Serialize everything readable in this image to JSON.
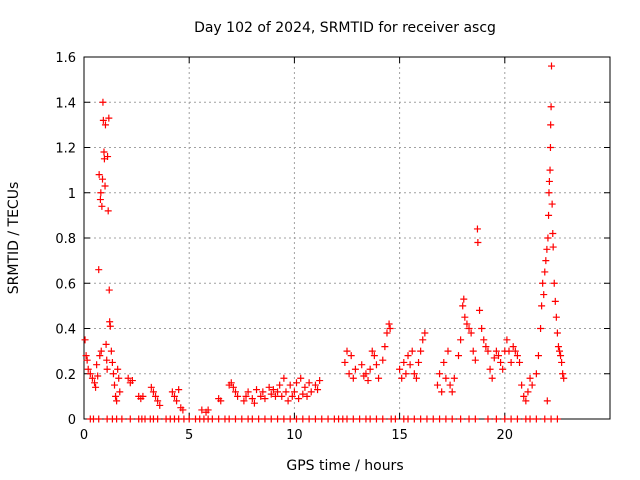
{
  "chart_data": {
    "type": "scatter",
    "title": "Day 102 of 2024, SRMTID for receiver ascg",
    "xlabel": "GPS time / hours",
    "ylabel": "SRMTID / TECUs",
    "xlim": [
      0,
      25
    ],
    "ylim": [
      0,
      1.6
    ],
    "xticks": [
      0,
      5,
      10,
      15,
      20
    ],
    "yticks": [
      0,
      0.2,
      0.4,
      0.6,
      0.8,
      1,
      1.2,
      1.4,
      1.6
    ],
    "xtick_labels": [
      "0",
      "5",
      "10",
      "15",
      "20"
    ],
    "ytick_labels": [
      "0",
      "0.2",
      "0.4",
      "0.6",
      "0.8",
      "1",
      "1.2",
      "1.4",
      "1.6"
    ],
    "grid": true,
    "marker": "+",
    "color": "#ff0000",
    "series": [
      {
        "name": "SRMTID",
        "points": [
          [
            0.05,
            0.35
          ],
          [
            0.1,
            0.28
          ],
          [
            0.15,
            0.26
          ],
          [
            0.2,
            0.22
          ],
          [
            0.3,
            0.2
          ],
          [
            0.4,
            0.18
          ],
          [
            0.5,
            0.16
          ],
          [
            0.55,
            0.14
          ],
          [
            0.6,
            0.24
          ],
          [
            0.65,
            0.19
          ],
          [
            0.7,
            0.66
          ],
          [
            0.72,
            1.08
          ],
          [
            0.75,
            0.28
          ],
          [
            0.78,
            0.97
          ],
          [
            0.8,
            1.0
          ],
          [
            0.82,
            0.3
          ],
          [
            0.85,
            0.94
          ],
          [
            0.88,
            1.06
          ],
          [
            0.9,
            1.4
          ],
          [
            0.92,
            1.32
          ],
          [
            0.95,
            1.18
          ],
          [
            0.97,
            1.15
          ],
          [
            1.0,
            1.03
          ],
          [
            1.02,
            1.3
          ],
          [
            1.05,
            0.33
          ],
          [
            1.08,
            0.26
          ],
          [
            1.1,
            0.22
          ],
          [
            1.12,
            1.16
          ],
          [
            1.15,
            0.92
          ],
          [
            1.18,
            1.33
          ],
          [
            1.2,
            0.57
          ],
          [
            1.22,
            0.43
          ],
          [
            1.25,
            0.41
          ],
          [
            1.3,
            0.3
          ],
          [
            1.35,
            0.25
          ],
          [
            1.4,
            0.2
          ],
          [
            1.45,
            0.15
          ],
          [
            1.5,
            0.1
          ],
          [
            1.55,
            0.08
          ],
          [
            1.6,
            0.22
          ],
          [
            1.65,
            0.18
          ],
          [
            1.7,
            0.12
          ],
          [
            2.1,
            0.18
          ],
          [
            2.2,
            0.16
          ],
          [
            2.3,
            0.17
          ],
          [
            2.6,
            0.1
          ],
          [
            2.7,
            0.09
          ],
          [
            2.8,
            0.1
          ],
          [
            3.2,
            0.14
          ],
          [
            3.3,
            0.12
          ],
          [
            3.4,
            0.1
          ],
          [
            3.5,
            0.08
          ],
          [
            3.6,
            0.06
          ],
          [
            4.2,
            0.12
          ],
          [
            4.3,
            0.1
          ],
          [
            4.4,
            0.08
          ],
          [
            4.5,
            0.13
          ],
          [
            4.6,
            0.05
          ],
          [
            4.7,
            0.04
          ],
          [
            5.6,
            0.04
          ],
          [
            5.8,
            0.03
          ],
          [
            5.9,
            0.04
          ],
          [
            6.4,
            0.09
          ],
          [
            6.5,
            0.08
          ],
          [
            6.9,
            0.15
          ],
          [
            7.0,
            0.16
          ],
          [
            7.1,
            0.14
          ],
          [
            7.2,
            0.12
          ],
          [
            7.3,
            0.1
          ],
          [
            7.6,
            0.08
          ],
          [
            7.7,
            0.1
          ],
          [
            7.8,
            0.12
          ],
          [
            8.0,
            0.09
          ],
          [
            8.1,
            0.07
          ],
          [
            8.2,
            0.13
          ],
          [
            8.4,
            0.1
          ],
          [
            8.5,
            0.12
          ],
          [
            8.6,
            0.09
          ],
          [
            8.8,
            0.14
          ],
          [
            8.9,
            0.11
          ],
          [
            9.0,
            0.13
          ],
          [
            9.1,
            0.1
          ],
          [
            9.2,
            0.12
          ],
          [
            9.3,
            0.15
          ],
          [
            9.4,
            0.1
          ],
          [
            9.5,
            0.18
          ],
          [
            9.6,
            0.12
          ],
          [
            9.7,
            0.08
          ],
          [
            9.8,
            0.15
          ],
          [
            9.9,
            0.1
          ],
          [
            10.0,
            0.12
          ],
          [
            10.1,
            0.16
          ],
          [
            10.2,
            0.09
          ],
          [
            10.3,
            0.18
          ],
          [
            10.4,
            0.11
          ],
          [
            10.5,
            0.14
          ],
          [
            10.6,
            0.1
          ],
          [
            10.7,
            0.16
          ],
          [
            10.8,
            0.12
          ],
          [
            11.0,
            0.15
          ],
          [
            11.1,
            0.13
          ],
          [
            11.2,
            0.17
          ],
          [
            12.4,
            0.25
          ],
          [
            12.5,
            0.3
          ],
          [
            12.6,
            0.2
          ],
          [
            12.7,
            0.28
          ],
          [
            12.8,
            0.18
          ],
          [
            12.9,
            0.22
          ],
          [
            13.2,
            0.24
          ],
          [
            13.3,
            0.19
          ],
          [
            13.4,
            0.2
          ],
          [
            13.5,
            0.17
          ],
          [
            13.6,
            0.22
          ],
          [
            13.7,
            0.3
          ],
          [
            13.8,
            0.28
          ],
          [
            13.9,
            0.24
          ],
          [
            14.0,
            0.18
          ],
          [
            14.2,
            0.26
          ],
          [
            14.3,
            0.32
          ],
          [
            14.4,
            0.38
          ],
          [
            14.5,
            0.42
          ],
          [
            14.55,
            0.4
          ],
          [
            15.0,
            0.22
          ],
          [
            15.1,
            0.18
          ],
          [
            15.2,
            0.25
          ],
          [
            15.3,
            0.2
          ],
          [
            15.4,
            0.28
          ],
          [
            15.5,
            0.24
          ],
          [
            15.6,
            0.3
          ],
          [
            15.7,
            0.2
          ],
          [
            15.8,
            0.18
          ],
          [
            15.9,
            0.25
          ],
          [
            16.0,
            0.3
          ],
          [
            16.1,
            0.35
          ],
          [
            16.2,
            0.38
          ],
          [
            16.8,
            0.15
          ],
          [
            16.9,
            0.2
          ],
          [
            17.0,
            0.12
          ],
          [
            17.1,
            0.25
          ],
          [
            17.2,
            0.18
          ],
          [
            17.3,
            0.3
          ],
          [
            17.4,
            0.15
          ],
          [
            17.5,
            0.12
          ],
          [
            17.6,
            0.18
          ],
          [
            17.8,
            0.28
          ],
          [
            17.9,
            0.35
          ],
          [
            18.0,
            0.5
          ],
          [
            18.05,
            0.53
          ],
          [
            18.1,
            0.45
          ],
          [
            18.2,
            0.42
          ],
          [
            18.3,
            0.4
          ],
          [
            18.4,
            0.38
          ],
          [
            18.5,
            0.3
          ],
          [
            18.6,
            0.26
          ],
          [
            18.7,
            0.84
          ],
          [
            18.72,
            0.78
          ],
          [
            18.8,
            0.48
          ],
          [
            18.9,
            0.4
          ],
          [
            19.0,
            0.35
          ],
          [
            19.1,
            0.32
          ],
          [
            19.2,
            0.3
          ],
          [
            19.3,
            0.22
          ],
          [
            19.4,
            0.18
          ],
          [
            19.5,
            0.27
          ],
          [
            19.6,
            0.3
          ],
          [
            19.7,
            0.28
          ],
          [
            19.8,
            0.25
          ],
          [
            19.9,
            0.22
          ],
          [
            20.0,
            0.3
          ],
          [
            20.1,
            0.35
          ],
          [
            20.2,
            0.3
          ],
          [
            20.3,
            0.25
          ],
          [
            20.4,
            0.32
          ],
          [
            20.5,
            0.3
          ],
          [
            20.6,
            0.28
          ],
          [
            20.7,
            0.25
          ],
          [
            20.8,
            0.15
          ],
          [
            20.9,
            0.1
          ],
          [
            21.0,
            0.08
          ],
          [
            21.1,
            0.12
          ],
          [
            21.2,
            0.18
          ],
          [
            21.3,
            0.15
          ],
          [
            21.5,
            0.2
          ],
          [
            21.6,
            0.28
          ],
          [
            21.7,
            0.4
          ],
          [
            21.75,
            0.5
          ],
          [
            21.8,
            0.6
          ],
          [
            21.85,
            0.55
          ],
          [
            21.9,
            0.65
          ],
          [
            21.95,
            0.7
          ],
          [
            22.0,
            0.75
          ],
          [
            22.02,
            0.08
          ],
          [
            22.05,
            0.8
          ],
          [
            22.08,
            0.9
          ],
          [
            22.1,
            1.0
          ],
          [
            22.12,
            1.05
          ],
          [
            22.15,
            1.1
          ],
          [
            22.17,
            1.2
          ],
          [
            22.18,
            1.3
          ],
          [
            22.2,
            1.38
          ],
          [
            22.22,
            1.56
          ],
          [
            22.25,
            0.95
          ],
          [
            22.28,
            0.82
          ],
          [
            22.3,
            0.76
          ],
          [
            22.35,
            0.6
          ],
          [
            22.4,
            0.52
          ],
          [
            22.45,
            0.45
          ],
          [
            22.5,
            0.38
          ],
          [
            22.55,
            0.32
          ],
          [
            22.6,
            0.3
          ],
          [
            22.65,
            0.28
          ],
          [
            22.7,
            0.25
          ],
          [
            22.75,
            0.2
          ],
          [
            22.8,
            0.18
          ]
        ]
      }
    ],
    "zero_points_x": [
      0.3,
      0.45,
      0.7,
      1.1,
      1.35,
      1.55,
      1.8,
      2.2,
      2.6,
      2.75,
      2.9,
      3.15,
      3.3,
      3.5,
      3.9,
      4.1,
      4.3,
      4.5,
      4.75,
      5.0,
      5.3,
      5.5,
      5.7,
      5.9,
      6.1,
      6.4,
      6.7,
      6.9,
      7.2,
      7.5,
      7.8,
      8.0,
      8.3,
      8.6,
      8.9,
      9.2,
      9.5,
      9.8,
      10.1,
      10.4,
      10.7,
      11.0,
      11.3,
      11.6,
      11.9,
      12.1,
      12.3,
      12.5,
      12.8,
      13.1,
      13.4,
      13.6,
      13.9,
      14.2,
      14.6,
      14.8,
      15.2,
      15.4,
      15.7,
      16.0,
      16.3,
      16.6,
      16.9,
      17.2,
      17.5,
      17.9,
      18.3,
      18.6,
      19.2,
      19.6,
      20.0,
      20.3,
      20.6,
      21.0,
      21.2,
      21.5,
      21.9,
      22.2,
      22.5
    ]
  }
}
